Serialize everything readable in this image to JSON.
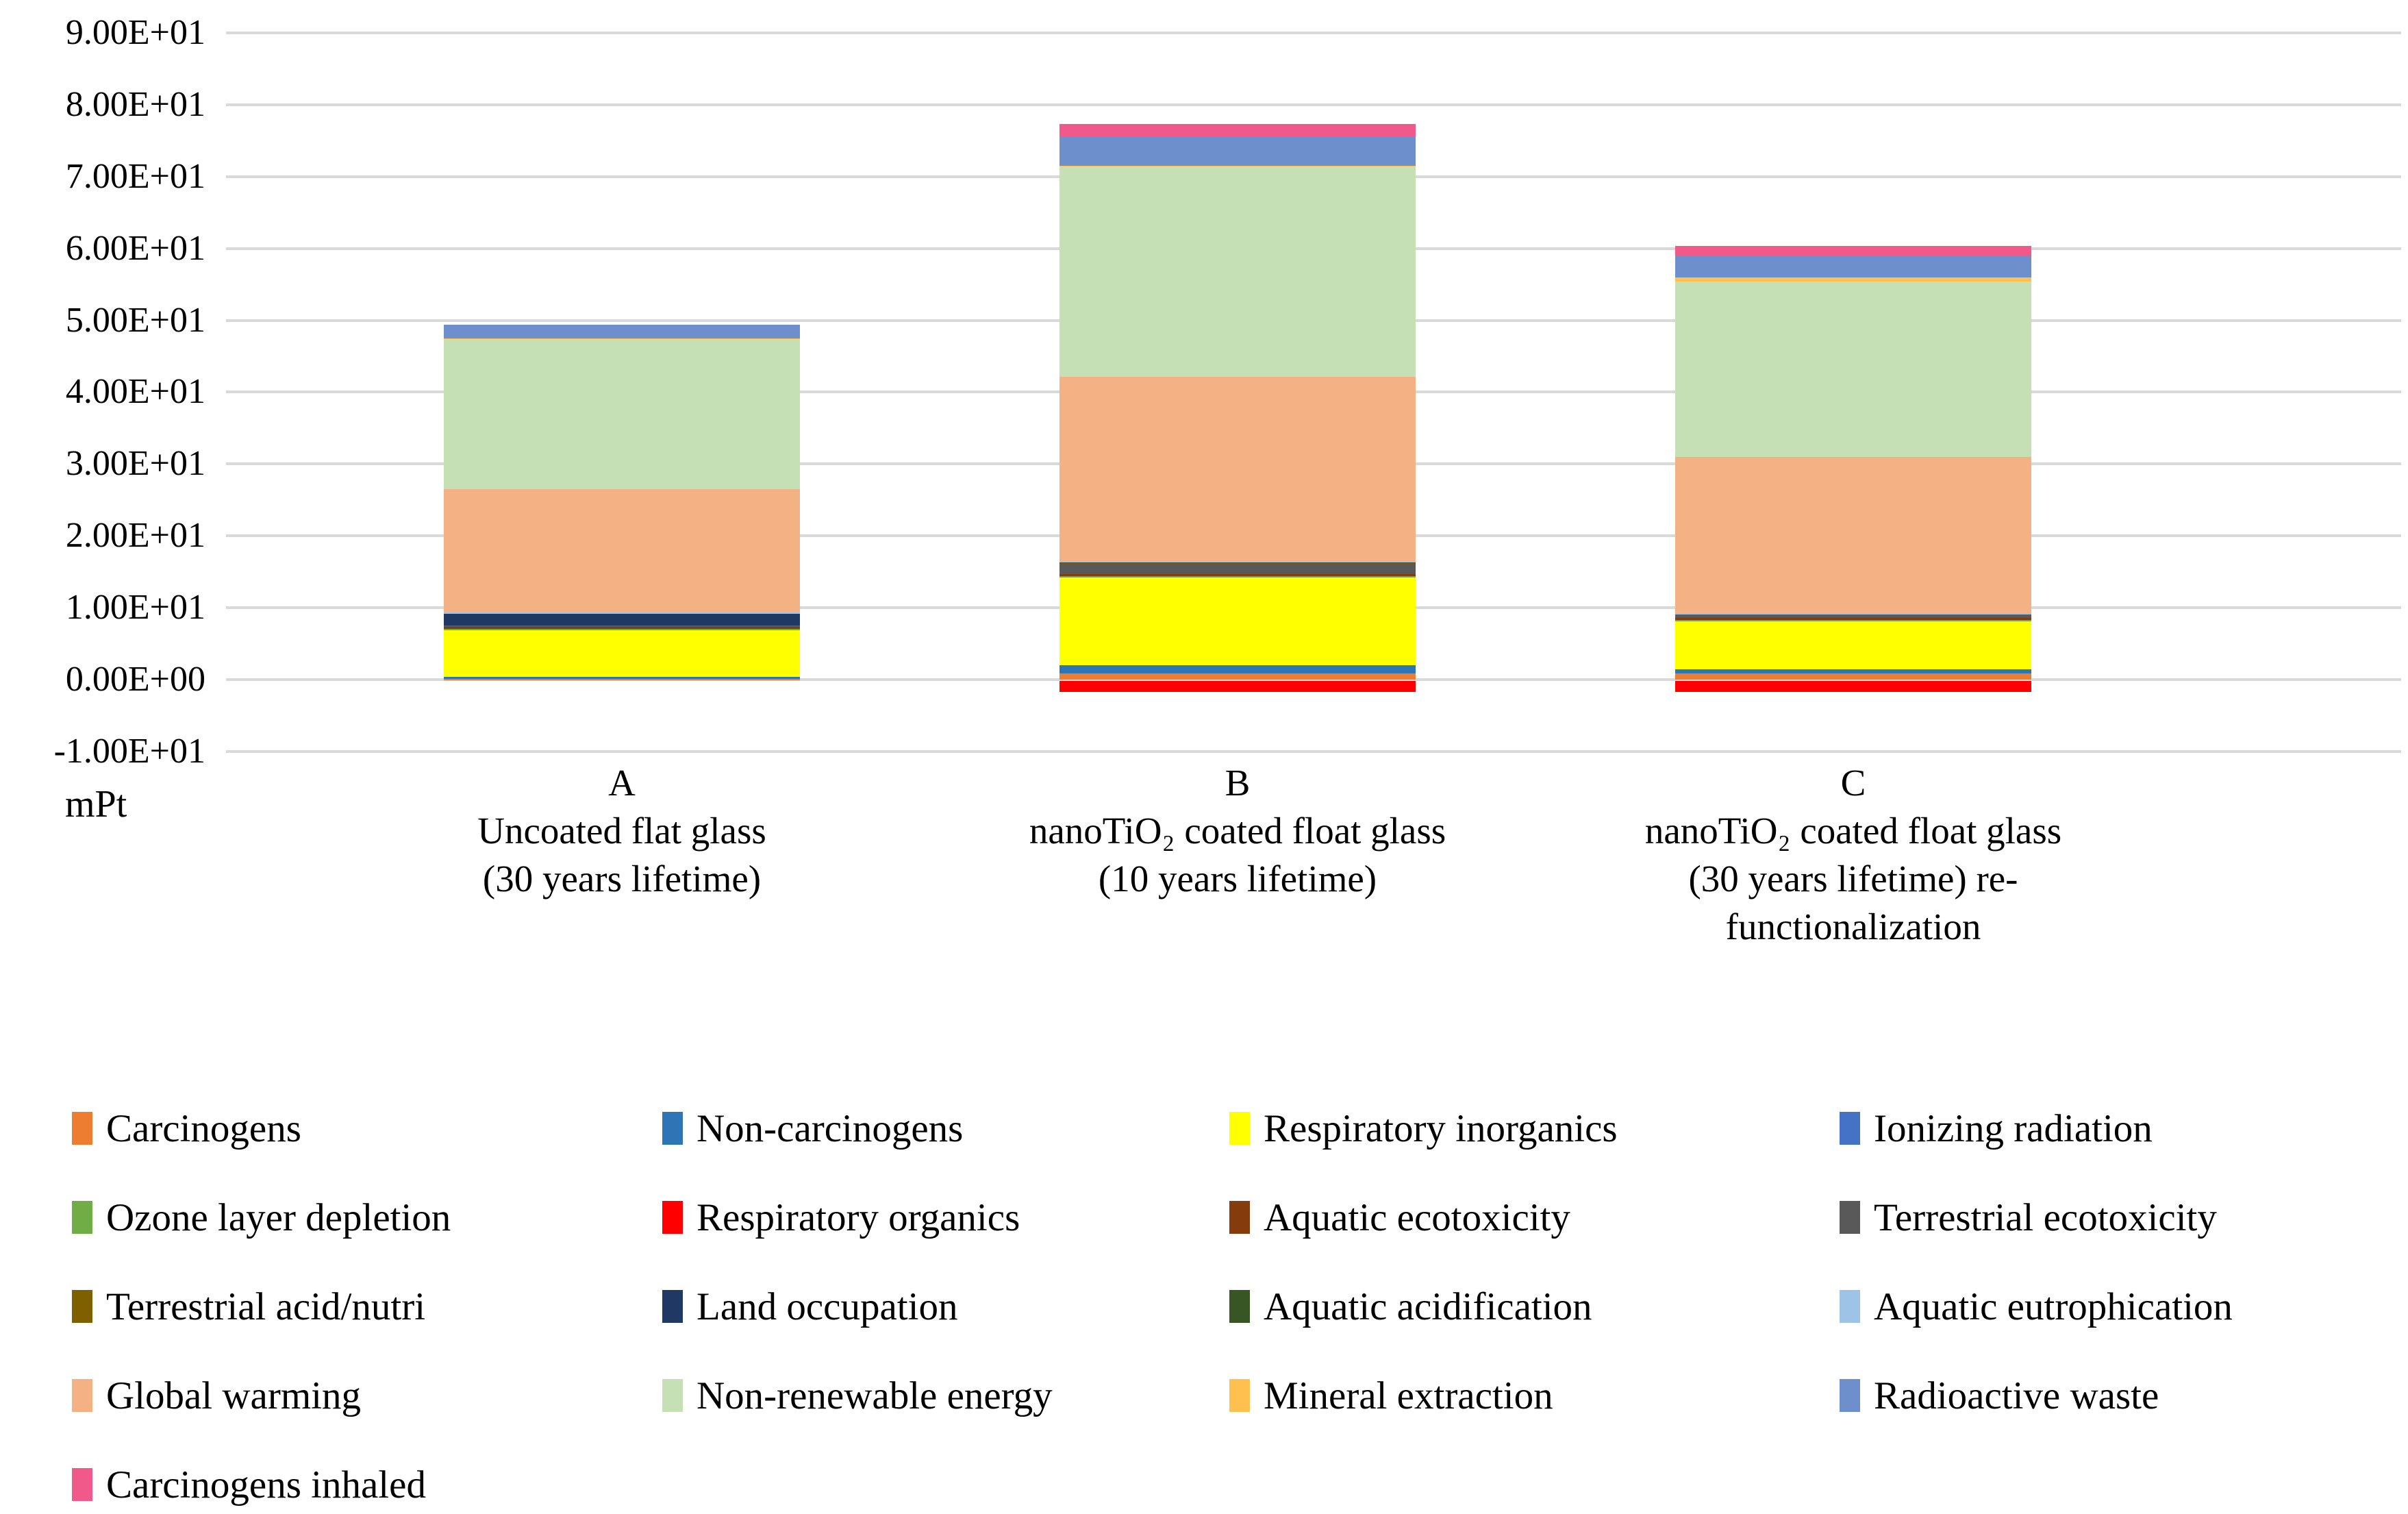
{
  "chart_data": {
    "type": "bar",
    "stacked": true,
    "title": "",
    "unit_label": "mPt",
    "ylim": [
      -10,
      90
    ],
    "grid": true,
    "legend_position": "bottom",
    "y_ticks": [
      {
        "value": 90,
        "label": "9.00E+01"
      },
      {
        "value": 80,
        "label": "8.00E+01"
      },
      {
        "value": 70,
        "label": "7.00E+01"
      },
      {
        "value": 60,
        "label": "6.00E+01"
      },
      {
        "value": 50,
        "label": "5.00E+01"
      },
      {
        "value": 40,
        "label": "4.00E+01"
      },
      {
        "value": 30,
        "label": "3.00E+01"
      },
      {
        "value": 20,
        "label": "2.00E+01"
      },
      {
        "value": 10,
        "label": "1.00E+01"
      },
      {
        "value": 0,
        "label": "0.00E+00"
      },
      {
        "value": -10,
        "label": "-1.00E+01"
      }
    ],
    "categories": [
      {
        "letter": "A",
        "lines": [
          "Uncoated flat glass",
          "(30 years lifetime)"
        ]
      },
      {
        "letter": "B",
        "lines": [
          "nanoTiO₂ coated float glass",
          "(10 years lifetime)"
        ]
      },
      {
        "letter": "C",
        "lines": [
          "nanoTiO₂ coated float glass",
          "(30 years lifetime) re-",
          "functionalization"
        ]
      }
    ],
    "series": [
      {
        "name": "Carcinogens",
        "color": "#ED7D31",
        "values": [
          0.05,
          0.85,
          0.85
        ]
      },
      {
        "name": "Non-carcinogens",
        "color": "#2E75B6",
        "values": [
          0.3,
          1.15,
          0.6
        ]
      },
      {
        "name": "Respiratory inorganics",
        "color": "#FFFF00",
        "values": [
          6.6,
          12.3,
          6.75
        ]
      },
      {
        "name": "Ionizing radiation",
        "color": "#4472C4",
        "values": [
          0.05,
          0.05,
          0.05
        ]
      },
      {
        "name": "Ozone layer depletion",
        "color": "#70AD47",
        "values": [
          0.02,
          0.02,
          0.02
        ]
      },
      {
        "name": "Respiratory organics",
        "color": "#FF0000",
        "values": [
          0.0,
          -1.5,
          -1.5
        ]
      },
      {
        "name": "Aquatic ecotoxicity",
        "color": "#843C0C",
        "values": [
          0.4,
          0.35,
          0.3
        ]
      },
      {
        "name": "Terrestrial ecotoxicity",
        "color": "#595959",
        "values": [
          0.1,
          1.5,
          0.55
        ]
      },
      {
        "name": "Terrestrial acid/nutri",
        "color": "#7F6000",
        "values": [
          0.05,
          0.05,
          0.05
        ]
      },
      {
        "name": "Land occupation",
        "color": "#203864",
        "values": [
          1.7,
          0.1,
          0.02
        ]
      },
      {
        "name": "Aquatic acidification",
        "color": "#375623",
        "values": [
          0.02,
          0.02,
          0.02
        ]
      },
      {
        "name": "Aquatic eutrophication",
        "color": "#9DC3E6",
        "values": [
          0.03,
          0.03,
          0.03
        ]
      },
      {
        "name": "Global warming",
        "color": "#F4B183",
        "values": [
          17.2,
          25.7,
          21.7
        ]
      },
      {
        "name": "Non-renewable energy",
        "color": "#C5E0B4",
        "values": [
          20.9,
          29.3,
          24.4
        ]
      },
      {
        "name": "Mineral extraction",
        "color": "#FFC04D",
        "values": [
          0.1,
          0.1,
          0.6
        ]
      },
      {
        "name": "Radioactive waste",
        "color": "#6D8FCB",
        "values": [
          1.85,
          4.1,
          3.1
        ]
      },
      {
        "name": "Carcinogens inhaled",
        "color": "#F0598A",
        "values": [
          0.0,
          1.7,
          1.3
        ]
      }
    ]
  }
}
